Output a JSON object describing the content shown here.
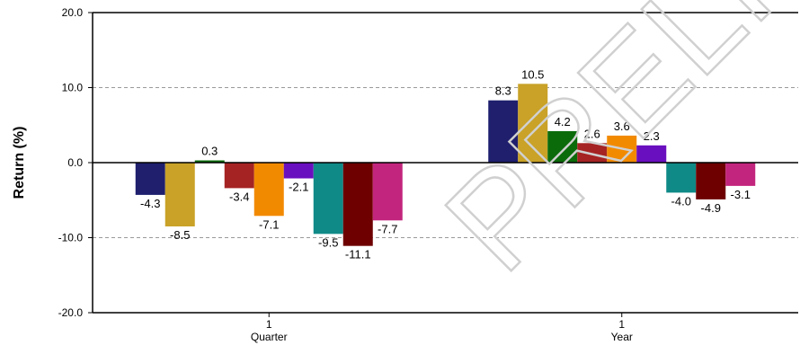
{
  "watermark_text": "PRELIMINARY",
  "chart_data": {
    "type": "bar",
    "ylabel": "Return (%)",
    "ylim": [
      -20,
      20
    ],
    "yticks": [
      "20.0",
      "10.0",
      "0.0",
      "-10.0",
      "-20.0"
    ],
    "ytick_values": [
      20,
      10,
      0,
      -10,
      -20
    ],
    "grid": "horizontal dashed",
    "categories": [
      {
        "top": "1",
        "bottom": "Quarter"
      },
      {
        "top": "1",
        "bottom": "Year"
      }
    ],
    "series": [
      {
        "color": "#1f1f6e",
        "values": [
          -4.3,
          8.3
        ],
        "labels": [
          "-4.3",
          "8.3"
        ]
      },
      {
        "color": "#c9a227",
        "values": [
          -8.5,
          10.5
        ],
        "labels": [
          "-8.5",
          "10.5"
        ]
      },
      {
        "color": "#0b6b0b",
        "values": [
          0.3,
          4.2
        ],
        "labels": [
          "0.3",
          "4.2"
        ]
      },
      {
        "color": "#a52323",
        "values": [
          -3.4,
          2.6
        ],
        "labels": [
          "-3.4",
          "2.6"
        ]
      },
      {
        "color": "#f28a00",
        "values": [
          -7.1,
          3.6
        ],
        "labels": [
          "-7.1",
          "3.6"
        ]
      },
      {
        "color": "#6a0fbf",
        "values": [
          -2.1,
          2.3
        ],
        "labels": [
          "-2.1",
          "2.3"
        ]
      },
      {
        "color": "#0f8a87",
        "values": [
          -9.5,
          -4.0
        ],
        "labels": [
          "-9.5",
          "-4.0"
        ]
      },
      {
        "color": "#6e0000",
        "values": [
          -11.1,
          -4.9
        ],
        "labels": [
          "-11.1",
          "-4.9"
        ]
      },
      {
        "color": "#c2257d",
        "values": [
          -7.7,
          -3.1
        ],
        "labels": [
          "-7.7",
          "-3.1"
        ]
      }
    ]
  }
}
